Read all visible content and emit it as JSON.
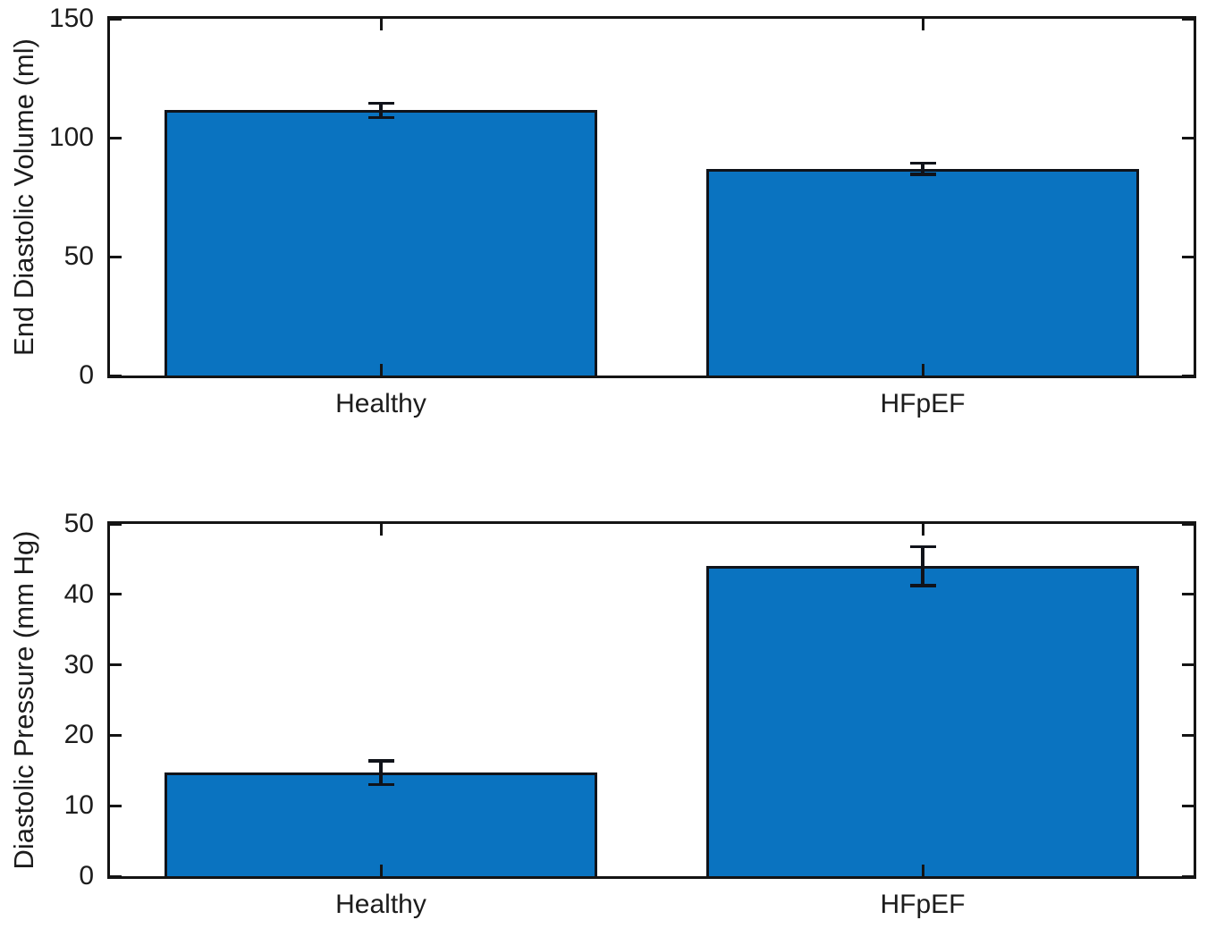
{
  "figure": {
    "background": "#ffffff",
    "axis_color": "#141414",
    "text_color": "#1c1c1c"
  },
  "chart_data": [
    {
      "type": "bar",
      "title": "",
      "categories": [
        "Healthy",
        "HFpEF"
      ],
      "values": [
        111.5,
        87
      ],
      "errors": [
        3.7,
        3
      ],
      "error_bars": true,
      "xlabel": "",
      "ylabel": "End Diastolic Volume (ml)",
      "ylim": [
        0,
        150
      ],
      "yticks": [
        0,
        50,
        100,
        150
      ],
      "grid": false,
      "legend": null,
      "box": true,
      "tick_direction": "in",
      "bar_color": "#0a73c0",
      "bar_edge_color": "#10131a"
    },
    {
      "type": "bar",
      "title": "",
      "categories": [
        "Healthy",
        "HFpEF"
      ],
      "values": [
        14.7,
        44
      ],
      "errors": [
        1.9,
        3
      ],
      "error_bars": true,
      "xlabel": "",
      "ylabel": "Diastolic Pressure (mm Hg)",
      "ylim": [
        0,
        50
      ],
      "yticks": [
        0,
        10,
        20,
        30,
        40,
        50
      ],
      "grid": false,
      "legend": null,
      "box": true,
      "tick_direction": "in",
      "bar_color": "#0a73c0",
      "bar_edge_color": "#10131a"
    }
  ]
}
